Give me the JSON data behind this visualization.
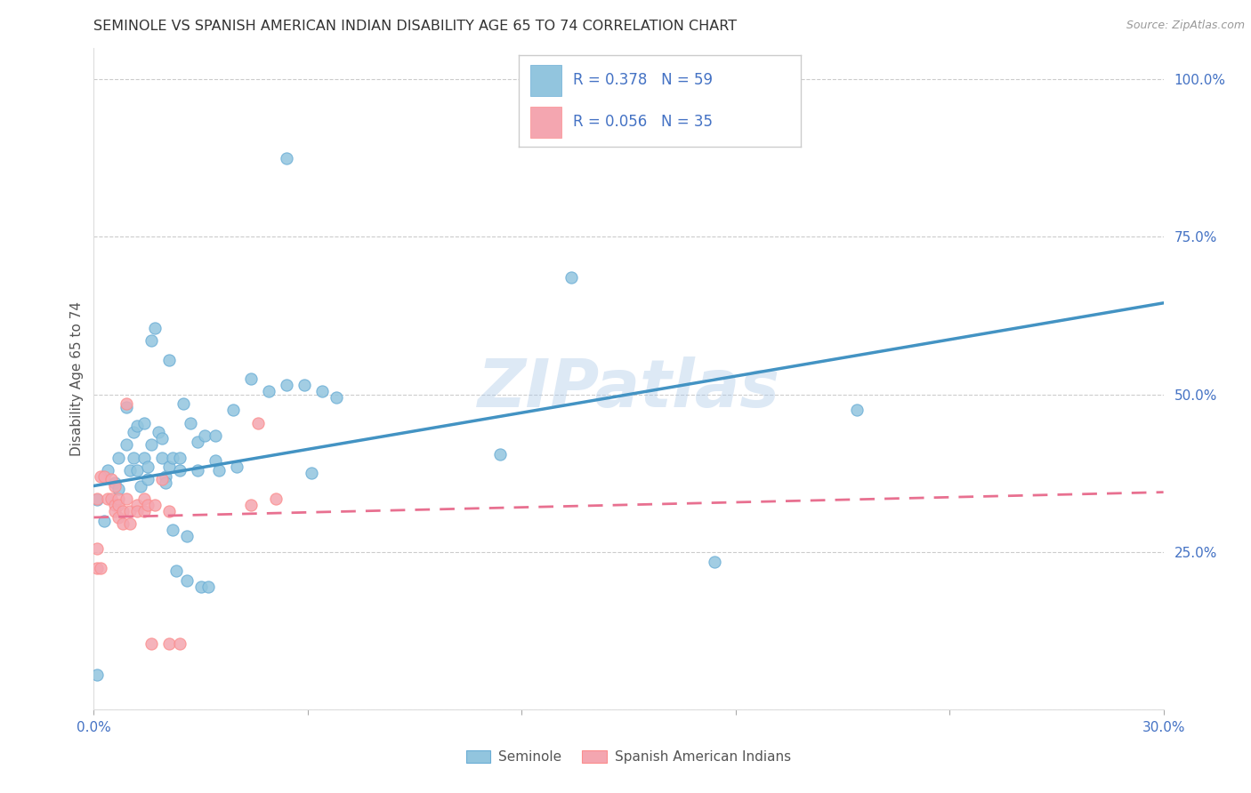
{
  "title": "SEMINOLE VS SPANISH AMERICAN INDIAN DISABILITY AGE 65 TO 74 CORRELATION CHART",
  "source": "Source: ZipAtlas.com",
  "ylabel": "Disability Age 65 to 74",
  "xlim": [
    0.0,
    0.3
  ],
  "ylim": [
    0.0,
    1.05
  ],
  "right_yticks": [
    0.0,
    0.25,
    0.5,
    0.75,
    1.0
  ],
  "right_yticklabels": [
    "",
    "25.0%",
    "50.0%",
    "75.0%",
    "100.0%"
  ],
  "xticks": [
    0.0,
    0.06,
    0.12,
    0.18,
    0.24,
    0.3
  ],
  "xticklabels": [
    "0.0%",
    "",
    "",
    "",
    "",
    "30.0%"
  ],
  "seminole_R": 0.378,
  "seminole_N": 59,
  "spanish_R": 0.056,
  "spanish_N": 35,
  "seminole_color": "#92c5de",
  "spanish_color": "#f4a6b0",
  "seminole_edge": "#6baed6",
  "spanish_edge": "#fc8d8d",
  "trend_seminole_color": "#4393c3",
  "trend_spanish_color": "#e87090",
  "background_color": "#ffffff",
  "watermark": "ZIPatlas",
  "seminole_scatter": [
    [
      0.001,
      0.333
    ],
    [
      0.003,
      0.3
    ],
    [
      0.004,
      0.38
    ],
    [
      0.006,
      0.36
    ],
    [
      0.007,
      0.4
    ],
    [
      0.007,
      0.35
    ],
    [
      0.009,
      0.42
    ],
    [
      0.009,
      0.48
    ],
    [
      0.01,
      0.38
    ],
    [
      0.011,
      0.44
    ],
    [
      0.011,
      0.4
    ],
    [
      0.012,
      0.45
    ],
    [
      0.012,
      0.38
    ],
    [
      0.013,
      0.355
    ],
    [
      0.014,
      0.455
    ],
    [
      0.014,
      0.4
    ],
    [
      0.015,
      0.365
    ],
    [
      0.015,
      0.385
    ],
    [
      0.016,
      0.42
    ],
    [
      0.016,
      0.585
    ],
    [
      0.017,
      0.605
    ],
    [
      0.018,
      0.44
    ],
    [
      0.019,
      0.43
    ],
    [
      0.019,
      0.4
    ],
    [
      0.02,
      0.37
    ],
    [
      0.02,
      0.36
    ],
    [
      0.021,
      0.555
    ],
    [
      0.021,
      0.385
    ],
    [
      0.022,
      0.4
    ],
    [
      0.022,
      0.285
    ],
    [
      0.023,
      0.22
    ],
    [
      0.024,
      0.4
    ],
    [
      0.024,
      0.38
    ],
    [
      0.025,
      0.485
    ],
    [
      0.026,
      0.275
    ],
    [
      0.026,
      0.205
    ],
    [
      0.027,
      0.455
    ],
    [
      0.029,
      0.425
    ],
    [
      0.029,
      0.38
    ],
    [
      0.03,
      0.195
    ],
    [
      0.031,
      0.435
    ],
    [
      0.032,
      0.195
    ],
    [
      0.034,
      0.435
    ],
    [
      0.034,
      0.395
    ],
    [
      0.035,
      0.38
    ],
    [
      0.039,
      0.475
    ],
    [
      0.04,
      0.385
    ],
    [
      0.044,
      0.525
    ],
    [
      0.049,
      0.505
    ],
    [
      0.054,
      0.875
    ],
    [
      0.054,
      0.515
    ],
    [
      0.059,
      0.515
    ],
    [
      0.061,
      0.375
    ],
    [
      0.064,
      0.505
    ],
    [
      0.068,
      0.495
    ],
    [
      0.114,
      0.405
    ],
    [
      0.134,
      0.685
    ],
    [
      0.174,
      0.235
    ],
    [
      0.214,
      0.475
    ],
    [
      0.001,
      0.055
    ]
  ],
  "spanish_scatter": [
    [
      0.001,
      0.335
    ],
    [
      0.002,
      0.37
    ],
    [
      0.003,
      0.37
    ],
    [
      0.004,
      0.335
    ],
    [
      0.005,
      0.335
    ],
    [
      0.005,
      0.365
    ],
    [
      0.006,
      0.325
    ],
    [
      0.006,
      0.315
    ],
    [
      0.006,
      0.355
    ],
    [
      0.007,
      0.335
    ],
    [
      0.007,
      0.305
    ],
    [
      0.007,
      0.325
    ],
    [
      0.008,
      0.315
    ],
    [
      0.008,
      0.295
    ],
    [
      0.009,
      0.485
    ],
    [
      0.009,
      0.335
    ],
    [
      0.01,
      0.315
    ],
    [
      0.01,
      0.295
    ],
    [
      0.012,
      0.325
    ],
    [
      0.012,
      0.315
    ],
    [
      0.014,
      0.335
    ],
    [
      0.014,
      0.315
    ],
    [
      0.015,
      0.325
    ],
    [
      0.016,
      0.105
    ],
    [
      0.017,
      0.325
    ],
    [
      0.019,
      0.365
    ],
    [
      0.021,
      0.315
    ],
    [
      0.021,
      0.105
    ],
    [
      0.024,
      0.105
    ],
    [
      0.044,
      0.325
    ],
    [
      0.046,
      0.455
    ],
    [
      0.051,
      0.335
    ],
    [
      0.001,
      0.225
    ],
    [
      0.002,
      0.225
    ],
    [
      0.001,
      0.255
    ]
  ],
  "seminole_trend_x": [
    0.0,
    0.3
  ],
  "seminole_trend_y": [
    0.355,
    0.645
  ],
  "spanish_trend_x": [
    0.0,
    0.3
  ],
  "spanish_trend_y": [
    0.305,
    0.345
  ]
}
